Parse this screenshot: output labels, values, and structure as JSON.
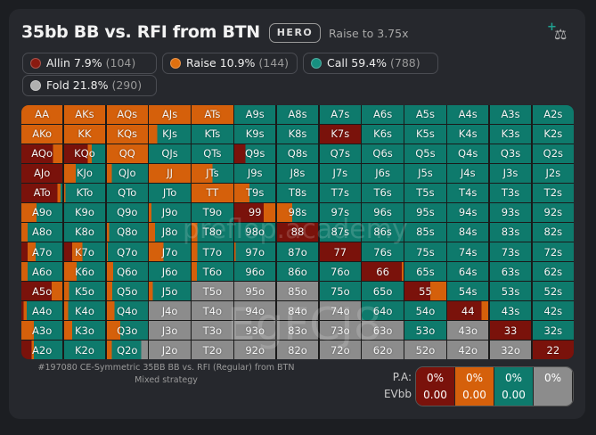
{
  "header": {
    "title": "35bb BB vs. RFI from BTN",
    "badge": "HERO",
    "subtitle": "Raise to 3.75x",
    "tool_icon": "scale-plus-icon"
  },
  "colors": {
    "allin": "#7a120b",
    "raise": "#d5600b",
    "call": "#0e7a6c",
    "fold": "#8c8c8c"
  },
  "legend": [
    {
      "label": "Allin 7.9%",
      "count": "(104)",
      "color": "#8a1a10"
    },
    {
      "label": "Raise 10.9%",
      "count": "(144)",
      "color": "#e0700f"
    },
    {
      "label": "Call 59.4%",
      "count": "(788)",
      "color": "#179080"
    },
    {
      "label": "Fold 21.8%",
      "count": "(290)",
      "color": "#b0b0b0"
    }
  ],
  "watermarks": [
    "preflop.academy",
    "EgFCJ8"
  ],
  "grid": [
    [
      [
        "AA",
        0,
        1,
        0,
        0
      ],
      [
        "AKs",
        0,
        1,
        0,
        0
      ],
      [
        "AQs",
        0,
        1,
        0,
        0
      ],
      [
        "AJs",
        0,
        1,
        0,
        0
      ],
      [
        "ATs",
        0,
        1,
        0,
        0
      ],
      [
        "A9s",
        0,
        0,
        1,
        0
      ],
      [
        "A8s",
        0,
        0,
        1,
        0
      ],
      [
        "A7s",
        0,
        0,
        1,
        0
      ],
      [
        "A6s",
        0,
        0,
        1,
        0
      ],
      [
        "A5s",
        0,
        0,
        1,
        0
      ],
      [
        "A4s",
        0,
        0,
        1,
        0
      ],
      [
        "A3s",
        0,
        0,
        1,
        0
      ],
      [
        "A2s",
        0,
        0,
        1,
        0
      ]
    ],
    [
      [
        "AKo",
        0,
        1,
        0,
        0
      ],
      [
        "KK",
        0,
        1,
        0,
        0
      ],
      [
        "KQs",
        0,
        1,
        0,
        0
      ],
      [
        "KJs",
        0,
        0.2,
        0.8,
        0
      ],
      [
        "KTs",
        0,
        0,
        1,
        0
      ],
      [
        "K9s",
        0,
        0,
        1,
        0
      ],
      [
        "K8s",
        0,
        0,
        1,
        0
      ],
      [
        "K7s",
        1,
        0,
        0,
        0
      ],
      [
        "K6s",
        0,
        0,
        1,
        0
      ],
      [
        "K5s",
        0,
        0,
        1,
        0
      ],
      [
        "K4s",
        0,
        0,
        1,
        0
      ],
      [
        "K3s",
        0,
        0,
        1,
        0
      ],
      [
        "K2s",
        0,
        0,
        1,
        0
      ]
    ],
    [
      [
        "AQo",
        0.77,
        0.23,
        0,
        0
      ],
      [
        "KQo",
        0.58,
        0.09,
        0.33,
        0
      ],
      [
        "QQ",
        0,
        1,
        0,
        0
      ],
      [
        "QJs",
        0,
        0,
        1,
        0
      ],
      [
        "QTs",
        0,
        0,
        1,
        0
      ],
      [
        "Q9s",
        0.27,
        0,
        0.73,
        0
      ],
      [
        "Q8s",
        0,
        0,
        1,
        0
      ],
      [
        "Q7s",
        0,
        0,
        1,
        0
      ],
      [
        "Q6s",
        0,
        0,
        1,
        0
      ],
      [
        "Q5s",
        0,
        0,
        1,
        0
      ],
      [
        "Q4s",
        0,
        0,
        1,
        0
      ],
      [
        "Q3s",
        0,
        0,
        1,
        0
      ],
      [
        "Q2s",
        0,
        0,
        1,
        0
      ]
    ],
    [
      [
        "AJo",
        1,
        0,
        0,
        0
      ],
      [
        "KJo",
        0,
        0.28,
        0.72,
        0
      ],
      [
        "QJo",
        0,
        0.12,
        0.88,
        0
      ],
      [
        "JJ",
        0,
        1,
        0,
        0
      ],
      [
        "JTs",
        0,
        0.5,
        0.5,
        0
      ],
      [
        "J9s",
        0,
        0,
        1,
        0
      ],
      [
        "J8s",
        0,
        0,
        1,
        0
      ],
      [
        "J7s",
        0,
        0,
        1,
        0
      ],
      [
        "J6s",
        0,
        0,
        1,
        0
      ],
      [
        "J5s",
        0,
        0,
        1,
        0
      ],
      [
        "J4s",
        0,
        0,
        1,
        0
      ],
      [
        "J3s",
        0,
        0,
        1,
        0
      ],
      [
        "J2s",
        0,
        0,
        1,
        0
      ]
    ],
    [
      [
        "ATo",
        0.88,
        0.08,
        0.04,
        0
      ],
      [
        "KTo",
        0,
        0.03,
        0.97,
        0
      ],
      [
        "QTo",
        0,
        0,
        1,
        0
      ],
      [
        "JTo",
        0,
        0,
        1,
        0
      ],
      [
        "TT",
        0,
        1,
        0,
        0
      ],
      [
        "T9s",
        0,
        0.37,
        0.63,
        0
      ],
      [
        "T8s",
        0,
        0,
        1,
        0
      ],
      [
        "T7s",
        0,
        0,
        1,
        0
      ],
      [
        "T6s",
        0,
        0,
        1,
        0
      ],
      [
        "T5s",
        0,
        0,
        1,
        0
      ],
      [
        "T4s",
        0,
        0,
        1,
        0
      ],
      [
        "T3s",
        0,
        0,
        1,
        0
      ],
      [
        "T2s",
        0,
        0,
        1,
        0
      ]
    ],
    [
      [
        "A9o",
        0,
        0.37,
        0.63,
        0
      ],
      [
        "K9o",
        0,
        0,
        1,
        0
      ],
      [
        "Q9o",
        0,
        0,
        1,
        0
      ],
      [
        "J9o",
        0,
        0.06,
        0.94,
        0
      ],
      [
        "T9o",
        0,
        0,
        1,
        0
      ],
      [
        "99",
        0.72,
        0.28,
        0,
        0
      ],
      [
        "98s",
        0,
        0.37,
        0.63,
        0
      ],
      [
        "97s",
        0,
        0,
        1,
        0
      ],
      [
        "96s",
        0,
        0,
        1,
        0
      ],
      [
        "95s",
        0,
        0,
        1,
        0
      ],
      [
        "94s",
        0,
        0,
        1,
        0
      ],
      [
        "93s",
        0,
        0,
        1,
        0
      ],
      [
        "92s",
        0,
        0,
        1,
        0
      ]
    ],
    [
      [
        "A8o",
        0,
        0.15,
        0.85,
        0
      ],
      [
        "K8o",
        0,
        0,
        1,
        0
      ],
      [
        "Q8o",
        0,
        0.05,
        0.95,
        0
      ],
      [
        "J8o",
        0,
        0.15,
        0.85,
        0
      ],
      [
        "T8o",
        0,
        0.14,
        0.86,
        0
      ],
      [
        "98o",
        0,
        0,
        1,
        0
      ],
      [
        "88",
        1,
        0,
        0,
        0
      ],
      [
        "87s",
        0,
        0,
        1,
        0
      ],
      [
        "86s",
        0,
        0,
        1,
        0
      ],
      [
        "85s",
        0,
        0,
        1,
        0
      ],
      [
        "84s",
        0,
        0,
        1,
        0
      ],
      [
        "83s",
        0,
        0,
        1,
        0
      ],
      [
        "82s",
        0,
        0,
        1,
        0
      ]
    ],
    [
      [
        "A7o",
        0.15,
        0.2,
        0.65,
        0
      ],
      [
        "K7o",
        0.2,
        0.25,
        0.55,
        0
      ],
      [
        "Q7o",
        0,
        0.02,
        0.98,
        0
      ],
      [
        "J7o",
        0,
        0.35,
        0.65,
        0
      ],
      [
        "T7o",
        0,
        0.14,
        0.86,
        0
      ],
      [
        "97o",
        0,
        0.03,
        0.97,
        0
      ],
      [
        "87o",
        0,
        0,
        1,
        0
      ],
      [
        "77",
        1,
        0,
        0,
        0
      ],
      [
        "76s",
        0,
        0,
        1,
        0
      ],
      [
        "75s",
        0,
        0,
        1,
        0
      ],
      [
        "74s",
        0,
        0,
        1,
        0
      ],
      [
        "73s",
        0,
        0,
        1,
        0
      ],
      [
        "72s",
        0,
        0,
        1,
        0
      ]
    ],
    [
      [
        "A6o",
        0,
        0.15,
        0.85,
        0
      ],
      [
        "K6o",
        0,
        0.3,
        0.7,
        0
      ],
      [
        "Q6o",
        0,
        0.15,
        0.85,
        0
      ],
      [
        "J6o",
        0,
        0,
        1,
        0
      ],
      [
        "T6o",
        0,
        0.13,
        0.87,
        0
      ],
      [
        "96o",
        0,
        0,
        1,
        0
      ],
      [
        "86o",
        0,
        0,
        1,
        0
      ],
      [
        "76o",
        0,
        0,
        1,
        0
      ],
      [
        "66",
        0.96,
        0.04,
        0,
        0
      ],
      [
        "65s",
        0,
        0,
        1,
        0
      ],
      [
        "64s",
        0,
        0,
        1,
        0
      ],
      [
        "63s",
        0,
        0,
        1,
        0
      ],
      [
        "62s",
        0,
        0,
        1,
        0
      ]
    ],
    [
      [
        "A5o",
        0.74,
        0.26,
        0,
        0
      ],
      [
        "K5o",
        0,
        0.12,
        0.88,
        0
      ],
      [
        "Q5o",
        0,
        0.13,
        0.87,
        0
      ],
      [
        "J5o",
        0,
        0.1,
        0.9,
        0
      ],
      [
        "T5o",
        0,
        0,
        0,
        1
      ],
      [
        "95o",
        0,
        0,
        0,
        1
      ],
      [
        "85o",
        0,
        0,
        0,
        1
      ],
      [
        "75o",
        0,
        0,
        1,
        0
      ],
      [
        "65o",
        0,
        0,
        1,
        0
      ],
      [
        "55",
        0.62,
        0.38,
        0,
        0
      ],
      [
        "54s",
        0,
        0,
        1,
        0
      ],
      [
        "53s",
        0,
        0,
        1,
        0
      ],
      [
        "52s",
        0,
        0,
        1,
        0
      ]
    ],
    [
      [
        "A4o",
        0.05,
        0.08,
        0.87,
        0
      ],
      [
        "K4o",
        0,
        0.1,
        0.9,
        0
      ],
      [
        "Q4o",
        0,
        0.19,
        0.81,
        0
      ],
      [
        "J4o",
        0,
        0,
        0,
        1
      ],
      [
        "T4o",
        0,
        0,
        0,
        1
      ],
      [
        "94o",
        0,
        0,
        0,
        1
      ],
      [
        "84o",
        0,
        0,
        0,
        1
      ],
      [
        "74o",
        0,
        0,
        0,
        1
      ],
      [
        "64o",
        0,
        0,
        1,
        0
      ],
      [
        "54o",
        0,
        0,
        1,
        0
      ],
      [
        "44",
        0.84,
        0.16,
        0,
        0
      ],
      [
        "43s",
        0,
        0,
        1,
        0
      ],
      [
        "42s",
        0,
        0,
        1,
        0
      ]
    ],
    [
      [
        "A3o",
        0,
        0.3,
        0.7,
        0
      ],
      [
        "K3o",
        0,
        0.2,
        0.8,
        0
      ],
      [
        "Q3o",
        0,
        0.33,
        0.67,
        0
      ],
      [
        "J3o",
        0,
        0,
        0,
        1
      ],
      [
        "T3o",
        0,
        0,
        0,
        1
      ],
      [
        "93o",
        0,
        0,
        0,
        1
      ],
      [
        "83o",
        0,
        0,
        0,
        1
      ],
      [
        "73o",
        0,
        0,
        0,
        1
      ],
      [
        "63o",
        0,
        0,
        0,
        1
      ],
      [
        "53o",
        0,
        0,
        1,
        0
      ],
      [
        "43o",
        0,
        0,
        0,
        1
      ],
      [
        "33",
        1,
        0,
        0,
        0
      ],
      [
        "32s",
        0,
        0,
        1,
        0
      ]
    ],
    [
      [
        "A2o",
        0.25,
        0.05,
        0.7,
        0
      ],
      [
        "K2o",
        0,
        0,
        1,
        0
      ],
      [
        "Q2o",
        0,
        0.12,
        0.72,
        0.16
      ],
      [
        "J2o",
        0,
        0,
        0,
        1
      ],
      [
        "T2o",
        0,
        0,
        0,
        1
      ],
      [
        "92o",
        0,
        0,
        0,
        1
      ],
      [
        "82o",
        0,
        0,
        0,
        1
      ],
      [
        "72o",
        0,
        0,
        0,
        1
      ],
      [
        "62o",
        0,
        0,
        0,
        1
      ],
      [
        "52o",
        0,
        0,
        0,
        1
      ],
      [
        "42o",
        0,
        0,
        0,
        1
      ],
      [
        "32o",
        0,
        0,
        0,
        1
      ],
      [
        "22",
        1,
        0,
        0,
        0
      ]
    ]
  ],
  "footer": {
    "line1": "#197080 CE-Symmetric 35BB BB vs. RFI (Regular) from BTN",
    "line2": "Mixed strategy"
  },
  "summary": {
    "pa_label": "P.A:",
    "ev_label": "EVbb",
    "cols": [
      {
        "pa": "0%",
        "ev": "0.00",
        "color": "#7a120b"
      },
      {
        "pa": "0%",
        "ev": "0.00",
        "color": "#d5600b"
      },
      {
        "pa": "0%",
        "ev": "0.00",
        "color": "#0e7a6c"
      },
      {
        "pa": "0%",
        "ev": "",
        "color": "#8c8c8c"
      }
    ]
  }
}
